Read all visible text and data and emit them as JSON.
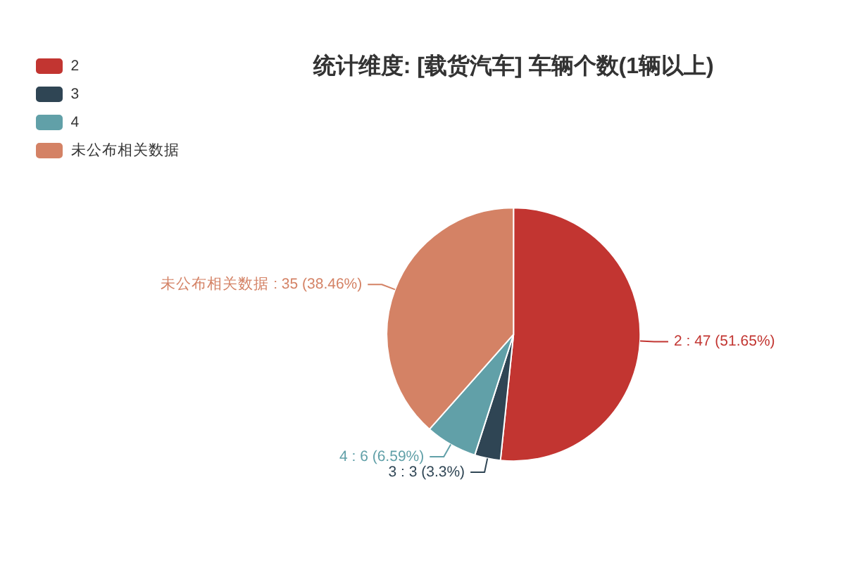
{
  "chart_data": {
    "type": "pie",
    "title": "统计维度: [载货汽车] 车辆个数(1辆以上)",
    "categories": [
      "2",
      "3",
      "4",
      "未公布相关数据"
    ],
    "values": [
      47,
      3,
      6,
      35
    ],
    "colors": [
      "#c23531",
      "#2f4554",
      "#61a0a8",
      "#d48265"
    ],
    "value_labels": [
      "2 : 47 (51.65%)",
      "3 : 3 (3.3%)",
      "4 : 6 (6.59%)",
      "未公布相关数据 : 35 (38.46%)"
    ],
    "legend": "top left"
  }
}
